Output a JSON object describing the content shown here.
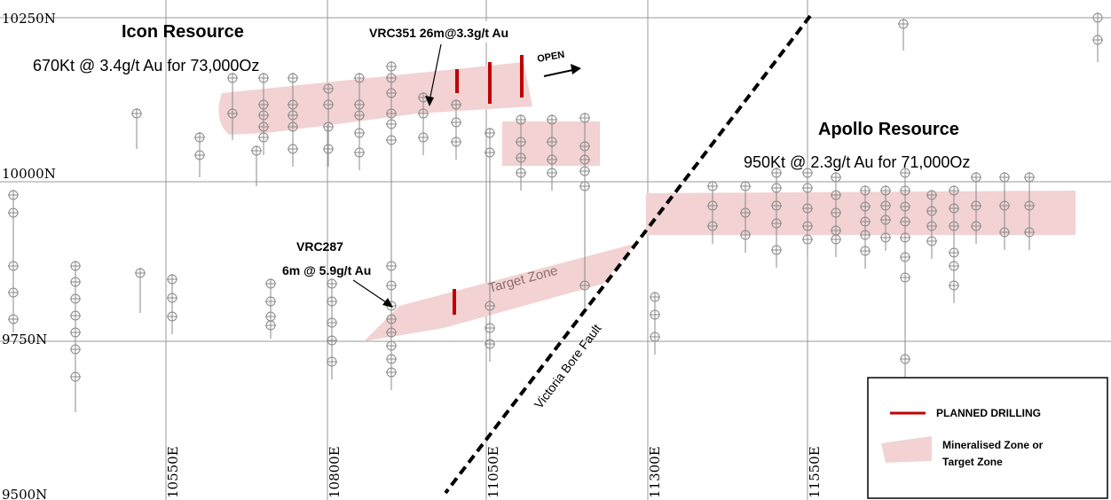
{
  "northings": [
    "10250N",
    "10000N",
    "9750N",
    "9500N"
  ],
  "eastings": [
    "10550E",
    "10800E",
    "11050E",
    "11300E",
    "11550E"
  ],
  "icon_resource": {
    "title": "Icon Resource",
    "subtitle": "670Kt @ 3.4g/t Au for 73,000Oz"
  },
  "apollo_resource": {
    "title": "Apollo Resource",
    "subtitle": "950Kt @ 2.3g/t Au for 71,000Oz"
  },
  "callouts": {
    "vrc351": "VRC351 26m@3.3g/t Au",
    "vrc287_line1": "VRC287",
    "vrc287_line2": "6m @ 5.9g/t Au",
    "open": "OPEN"
  },
  "target_zone_label": "Target Zone",
  "fault_label": "Victoria Bore Fault",
  "legend": {
    "planned_drilling": "PLANNED DRILLING",
    "zone_line1": "Mineralised Zone or",
    "zone_line2": "Target Zone"
  },
  "colors": {
    "zone_fill": "#f2d2d2",
    "planned_drilling": "#c00000",
    "grid": "#9a9a9a",
    "drillhole": "#8a8a8a",
    "fault": "#000000"
  },
  "icons": {
    "drillhole": "circle-crosshair",
    "fault": "dashed-line",
    "direction": "arrow-right"
  }
}
